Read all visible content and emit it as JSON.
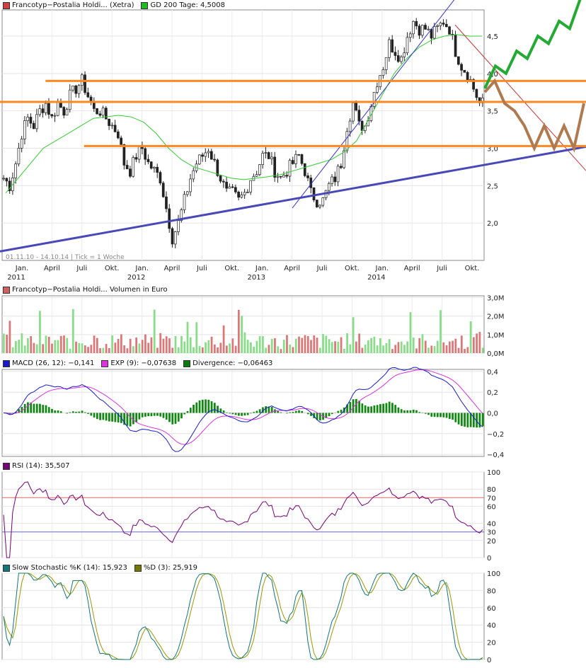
{
  "legends": {
    "price": [
      {
        "label": "Francotyp−Postalia Holdi... (Xetra)",
        "color": "#d04040"
      },
      {
        "label": "GD 200 Tage: 4,5008",
        "color": "#22bb22"
      }
    ],
    "volume": [
      {
        "label": "Francotyp−Postalia Holdi... Volumen in Euro",
        "color": "#d06060"
      }
    ],
    "macd": [
      {
        "label": "MACD (26, 12): −0,141",
        "color": "#1a1acc"
      },
      {
        "label": "EXP (9): −0,07638",
        "color": "#dd33dd"
      },
      {
        "label": "Divergence: −0,06463",
        "color": "#117711"
      }
    ],
    "rsi": [
      {
        "label": "RSI (14): 35,507",
        "color": "#770077"
      }
    ],
    "stoch": [
      {
        "label": "Slow Stochastic %K (14): 15,923",
        "color": "#117777"
      },
      {
        "label": "%D (3): 25,919",
        "color": "#777700"
      }
    ]
  },
  "stamp": "01.11.10 - 14.10.14 | Tick = 1 Woche",
  "chart_data": [
    {
      "type": "candlestick",
      "panel": "price",
      "x_ticks": [
        "Jan.",
        "April",
        "Juli",
        "Okt.",
        "Jan.",
        "April",
        "Juli",
        "Okt.",
        "Jan.",
        "April",
        "Juli",
        "Okt.",
        "Jan.",
        "April",
        "Juli",
        "Okt."
      ],
      "year_labels": [
        "2011",
        "2012",
        "2013",
        "2014"
      ],
      "y_ticks": [
        "2,0",
        "2,5",
        "3,0",
        "3,5",
        "4,0",
        "4,5"
      ],
      "ylim": [
        1.5,
        4.85
      ],
      "series_close": [
        2.6,
        2.5,
        2.8,
        3.2,
        3.4,
        3.3,
        3.5,
        3.6,
        3.4,
        3.6,
        3.5,
        3.7,
        3.8,
        3.9,
        3.7,
        3.5,
        3.5,
        3.4,
        3.3,
        3.2,
        2.8,
        2.7,
        2.9,
        3.0,
        2.8,
        2.7,
        2.6,
        2.2,
        1.8,
        2.0,
        2.3,
        2.6,
        2.8,
        2.9,
        3.0,
        2.8,
        2.6,
        2.4,
        2.4,
        2.3,
        2.4,
        2.6,
        2.7,
        2.9,
        2.9,
        2.7,
        2.6,
        2.7,
        2.8,
        2.9,
        2.7,
        2.4,
        2.3,
        2.3,
        2.5,
        2.6,
        2.8,
        3.3,
        3.6,
        3.3,
        3.3,
        3.6,
        3.9,
        4.1,
        4.4,
        4.3,
        4.2,
        4.5,
        4.7,
        4.6,
        4.6,
        4.5,
        4.6,
        4.7,
        4.6,
        4.3,
        4.1,
        4.0,
        3.8,
        3.6
      ],
      "gd200": [
        2.4,
        2.6,
        2.8,
        3.0,
        3.1,
        3.2,
        3.3,
        3.4,
        3.42,
        3.44,
        3.42,
        3.35,
        3.2,
        3.0,
        2.85,
        2.75,
        2.7,
        2.65,
        2.6,
        2.58,
        2.6,
        2.62,
        2.65,
        2.7,
        2.75,
        2.8,
        2.85,
        2.95,
        3.1,
        3.4,
        3.7,
        4.0,
        4.2,
        4.35,
        4.45,
        4.5,
        4.52,
        4.5,
        4.5
      ],
      "lines": [
        {
          "kind": "support",
          "color": "#4040b0",
          "from": [
            0,
            1.62
          ],
          "to": [
            1,
            3.02
          ]
        },
        {
          "kind": "resistance",
          "color": "#ff8822",
          "level": 3.9,
          "from": 0.09
        },
        {
          "kind": "resistance",
          "color": "#ff8822",
          "level": 3.62
        },
        {
          "kind": "resistance",
          "color": "#ff8822",
          "level": 3.03,
          "from": 0.17
        }
      ],
      "projections": [
        {
          "color": "#22aa33",
          "points": [
            [
              3.8
            ],
            [
              4.1
            ],
            [
              4.0
            ],
            [
              4.3
            ],
            [
              4.2
            ],
            [
              4.5
            ],
            [
              4.4
            ],
            [
              4.7
            ],
            [
              4.6
            ],
            [
              5.0
            ]
          ]
        },
        {
          "color": "#b07a50",
          "points": [
            [
              3.75
            ],
            [
              3.9
            ],
            [
              3.6
            ],
            [
              3.5
            ],
            [
              3.3
            ],
            [
              3.0
            ],
            [
              3.3
            ],
            [
              3.0
            ],
            [
              3.3
            ],
            [
              3.0
            ],
            [
              3.6
            ]
          ]
        }
      ]
    },
    {
      "type": "bar",
      "panel": "volume",
      "y_ticks": [
        "0,0M",
        "1,0M",
        "2,0M",
        "3,0M"
      ],
      "ylim": [
        0,
        3.1
      ]
    },
    {
      "type": "line",
      "panel": "macd",
      "y_ticks": [
        "−0,4",
        "−0,2",
        "0,0",
        "0,2",
        "0,4"
      ],
      "ylim": [
        -0.42,
        0.42
      ]
    },
    {
      "type": "line",
      "panel": "rsi",
      "y_ticks": [
        "0",
        "20",
        "30",
        "40",
        "60",
        "70",
        "80",
        "100"
      ],
      "ylim": [
        0,
        100
      ],
      "levels": [
        30,
        70
      ]
    },
    {
      "type": "line",
      "panel": "stoch",
      "y_ticks": [
        "0",
        "20",
        "40",
        "60",
        "80",
        "100"
      ],
      "ylim": [
        0,
        100
      ]
    }
  ]
}
